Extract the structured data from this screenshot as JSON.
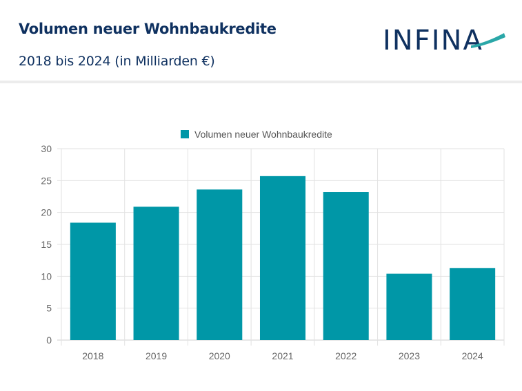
{
  "header": {
    "title": "Volumen neuer Wohnbaukredite",
    "subtitle": "2018 bis 2024 (in Milliarden €)",
    "logo_text": "INFINA"
  },
  "colors": {
    "title": "#0f3160",
    "bar": "#0097a7",
    "logo_accent": "#2aa7a8",
    "grid": "#e2e2e2"
  },
  "chart_data": {
    "type": "bar",
    "title": "",
    "xlabel": "",
    "ylabel": "",
    "categories": [
      "2018",
      "2019",
      "2020",
      "2021",
      "2022",
      "2023",
      "2024"
    ],
    "series": [
      {
        "name": "Volumen neuer Wohnbaukredite",
        "values": [
          18.4,
          20.9,
          23.6,
          25.7,
          23.2,
          10.4,
          11.3
        ]
      }
    ],
    "ylim": [
      0,
      30
    ],
    "yticks": [
      "0",
      "5",
      "10",
      "15",
      "20",
      "25",
      "30"
    ],
    "grid": true,
    "legend": "top-center"
  }
}
